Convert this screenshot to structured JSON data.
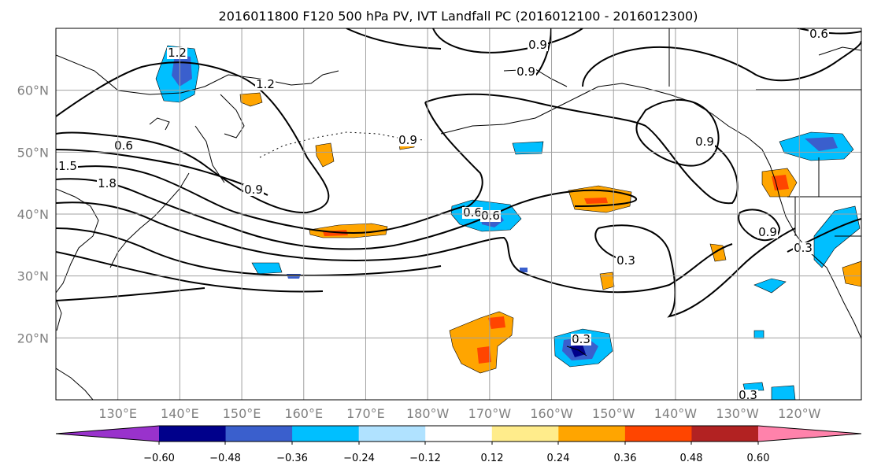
{
  "title": "2016011800 F120 500 hPa PV, IVT Landfall PC (2016012100 - 2016012300)",
  "map": {
    "lat_ticks": [
      {
        "label": "60°N",
        "value": 60
      },
      {
        "label": "50°N",
        "value": 50
      },
      {
        "label": "40°N",
        "value": 40
      },
      {
        "label": "30°N",
        "value": 30
      },
      {
        "label": "20°N",
        "value": 20
      }
    ],
    "lon_ticks": [
      {
        "label": "130°E",
        "value": 130
      },
      {
        "label": "140°E",
        "value": 140
      },
      {
        "label": "150°E",
        "value": 150
      },
      {
        "label": "160°E",
        "value": 160
      },
      {
        "label": "170°E",
        "value": 170
      },
      {
        "label": "180°W",
        "value": 180
      },
      {
        "label": "170°W",
        "value": 190
      },
      {
        "label": "160°W",
        "value": 200
      },
      {
        "label": "150°W",
        "value": 210
      },
      {
        "label": "140°W",
        "value": 220
      },
      {
        "label": "130°W",
        "value": 230
      },
      {
        "label": "120°W",
        "value": 240
      }
    ],
    "lon_range": [
      120,
      250
    ],
    "lat_range": [
      10,
      70
    ],
    "gridlines": true,
    "contour_labels": [
      "1.2",
      "1.2",
      "0.9",
      "0.9",
      "0.6",
      "0.6",
      "1.5",
      "1.8",
      "0.9",
      "0.6",
      "0.9",
      "0.3",
      "0.9",
      "0.3",
      "0.3",
      "0.3",
      "0.6",
      "0.9"
    ],
    "contour_color": "#000000",
    "land_outline_color": "#000000"
  },
  "colorbar": {
    "ticks": [
      "−0.60",
      "−0.48",
      "−0.36",
      "−0.24",
      "−0.12",
      "0.12",
      "0.24",
      "0.36",
      "0.48",
      "0.60"
    ],
    "bins": [
      "#9932cc",
      "#00008b",
      "#3a5fcd",
      "#00bfff",
      "#b0e2ff",
      "#ffffff",
      "#ffec8b",
      "#ffa500",
      "#ff4500",
      "#b22222",
      "#ff82ab"
    ],
    "extend": "both"
  }
}
